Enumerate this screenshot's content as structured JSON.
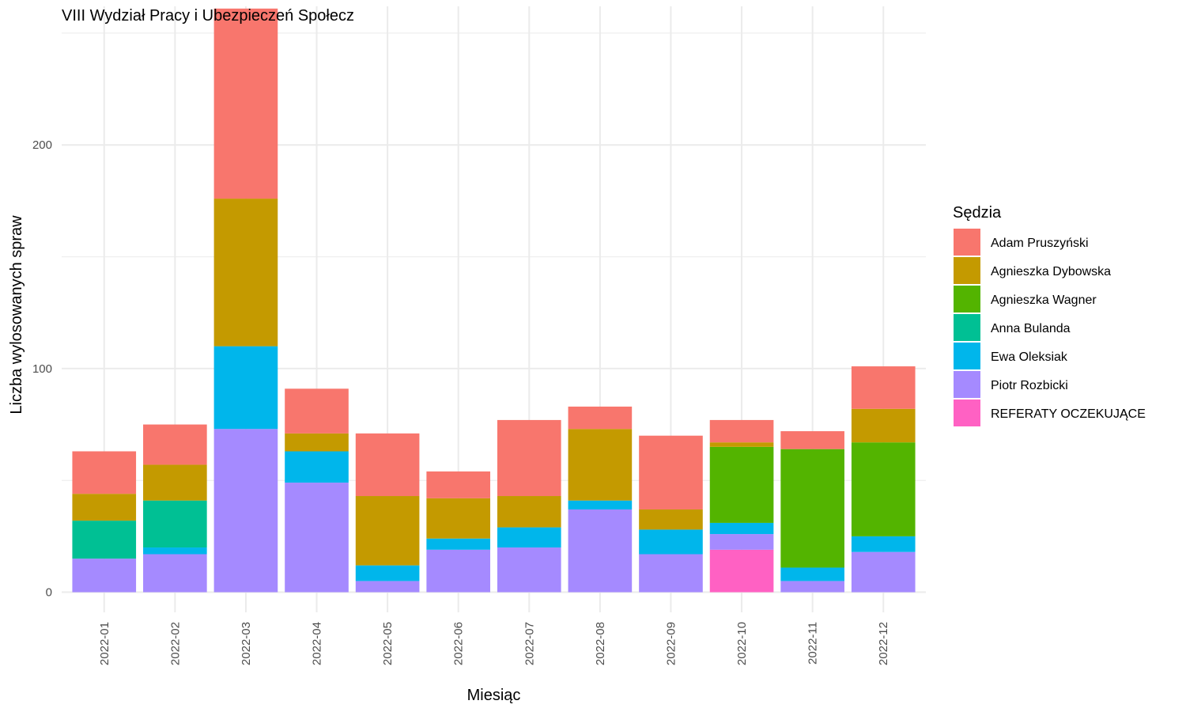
{
  "chart_data": {
    "type": "bar",
    "stacked": true,
    "title": "VIII Wydział Pracy i Ubezpieczeń Społecz",
    "xlabel": "Miesiąc",
    "ylabel": "Liczba wylosowanych spraw",
    "categories": [
      "2022-01",
      "2022-02",
      "2022-03",
      "2022-04",
      "2022-05",
      "2022-06",
      "2022-07",
      "2022-08",
      "2022-09",
      "2022-10",
      "2022-11",
      "2022-12"
    ],
    "y_ticks": [
      "0",
      "100",
      "200"
    ],
    "ylim": [
      -9,
      262
    ],
    "grid": true,
    "legend": {
      "title": "Sędzia",
      "position": "right"
    },
    "series": [
      {
        "name": "REFERATY OCZEKUJĄCE",
        "color": "#FF61C3",
        "values": [
          0,
          0,
          0,
          0,
          0,
          0,
          0,
          0,
          0,
          19,
          0,
          0
        ]
      },
      {
        "name": "Piotr Rozbicki",
        "color": "#A58AFF",
        "values": [
          15,
          17,
          73,
          49,
          5,
          19,
          20,
          37,
          17,
          7,
          5,
          18
        ]
      },
      {
        "name": "Ewa Oleksiak",
        "color": "#00B6EB",
        "values": [
          0,
          3,
          37,
          14,
          7,
          5,
          9,
          4,
          11,
          5,
          6,
          7
        ]
      },
      {
        "name": "Anna Bulanda",
        "color": "#00C094",
        "values": [
          17,
          21,
          0,
          0,
          0,
          0,
          0,
          0,
          0,
          0,
          0,
          0
        ]
      },
      {
        "name": "Agnieszka Wagner",
        "color": "#53B400",
        "values": [
          0,
          0,
          0,
          0,
          0,
          0,
          0,
          0,
          0,
          34,
          53,
          42
        ]
      },
      {
        "name": "Agnieszka Dybowska",
        "color": "#C49A00",
        "values": [
          12,
          16,
          66,
          8,
          31,
          18,
          14,
          32,
          9,
          2,
          0,
          15
        ]
      },
      {
        "name": "Adam Pruszyński",
        "color": "#F8766D",
        "values": [
          19,
          18,
          85,
          20,
          28,
          12,
          34,
          10,
          33,
          10,
          8,
          19
        ]
      }
    ],
    "legend_order": [
      "Adam Pruszyński",
      "Agnieszka Dybowska",
      "Agnieszka Wagner",
      "Anna Bulanda",
      "Ewa Oleksiak",
      "Piotr Rozbicki",
      "REFERATY OCZEKUJĄCE"
    ]
  }
}
